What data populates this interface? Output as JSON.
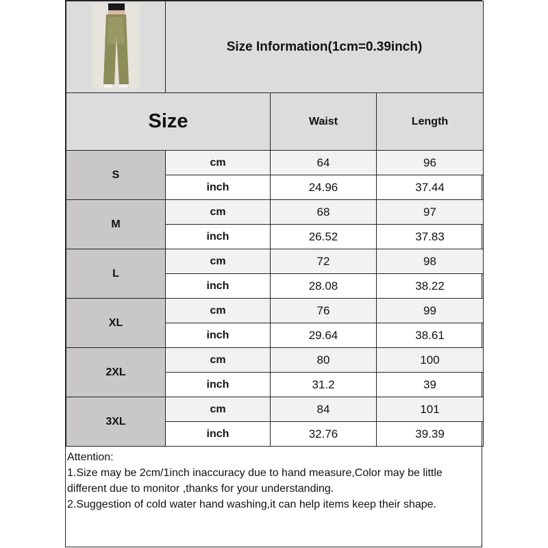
{
  "title": "Size Information(1cm=0.39inch)",
  "header": {
    "size": "Size",
    "columns": [
      "Waist",
      "Length"
    ]
  },
  "rows": [
    {
      "size": "S",
      "cm": {
        "unit": "cm",
        "waist": "64",
        "length": "96"
      },
      "inch": {
        "unit": "inch",
        "waist": "24.96",
        "length": "37.44"
      }
    },
    {
      "size": "M",
      "cm": {
        "unit": "cm",
        "waist": "68",
        "length": "97"
      },
      "inch": {
        "unit": "inch",
        "waist": "26.52",
        "length": "37.83"
      }
    },
    {
      "size": "L",
      "cm": {
        "unit": "cm",
        "waist": "72",
        "length": "98"
      },
      "inch": {
        "unit": "inch",
        "waist": "28.08",
        "length": "38.22"
      }
    },
    {
      "size": "XL",
      "cm": {
        "unit": "cm",
        "waist": "76",
        "length": "99"
      },
      "inch": {
        "unit": "inch",
        "waist": "29.64",
        "length": "38.61"
      }
    },
    {
      "size": "2XL",
      "cm": {
        "unit": "cm",
        "waist": "80",
        "length": "100"
      },
      "inch": {
        "unit": "inch",
        "waist": "31.2",
        "length": "39"
      }
    },
    {
      "size": "3XL",
      "cm": {
        "unit": "cm",
        "waist": "84",
        "length": "101"
      },
      "inch": {
        "unit": "inch",
        "waist": "32.76",
        "length": "39.39"
      }
    }
  ],
  "attention": {
    "heading": "Attention:",
    "lines": [
      "1.Size may be 2cm/1inch inaccuracy due to hand measure,Color may be little different due to monitor ,thanks for your understanding.",
      "2.Suggestion of cold water hand washing,it can help items keep their shape."
    ]
  },
  "colors": {
    "header_bg": "#dddcdc",
    "size_cell_bg": "#c9c7c7",
    "cm_row_bg": "#f2f2f2",
    "inch_row_bg": "#ffffff",
    "border": "#222222"
  }
}
